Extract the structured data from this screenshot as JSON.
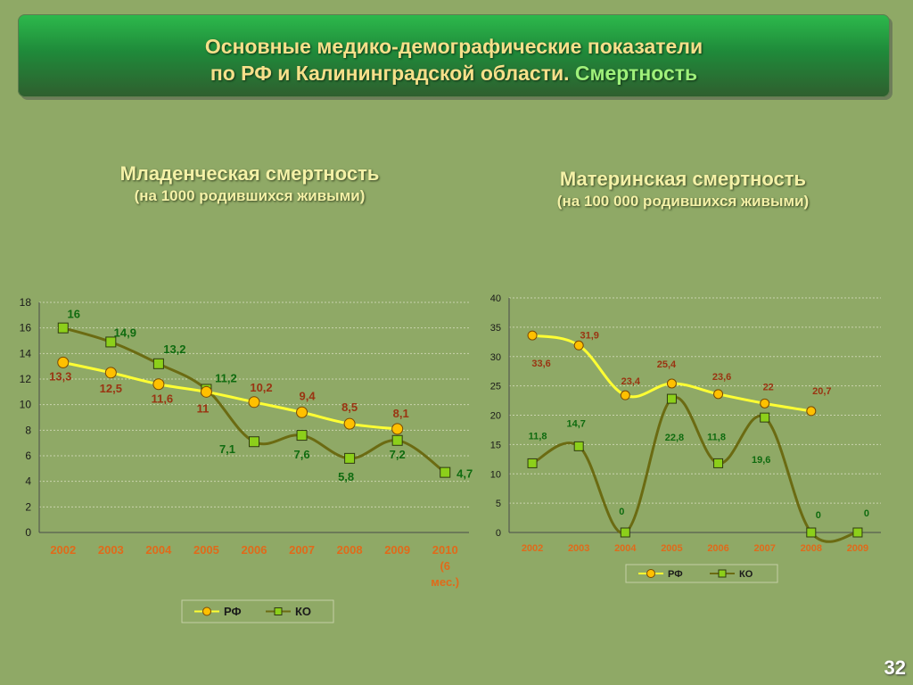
{
  "header": {
    "title_line1": "Основные медико-демографические показатели",
    "title_line2_main": "по РФ и Калининградской области.",
    "title_line2_accent": "Смертность"
  },
  "colors": {
    "background": "#8fa966",
    "rf_line": "#ffff33",
    "rf_marker": "#ffc000",
    "ko_line": "#6b6b12",
    "ko_marker": "#8ccf1a",
    "rf_label": "#9a3412",
    "ko_label": "#0f6b0f",
    "category_label": "#e06a1a"
  },
  "chart_data": [
    {
      "type": "line",
      "title": "Младенческая смертность",
      "subtitle": "(на 1000 родившихся живыми)",
      "categories": [
        "2002",
        "2003",
        "2004",
        "2005",
        "2006",
        "2007",
        "2008",
        "2009",
        "2010 (6 мес.)"
      ],
      "category_lines": [
        [
          "2002"
        ],
        [
          "2003"
        ],
        [
          "2004"
        ],
        [
          "2005"
        ],
        [
          "2006"
        ],
        [
          "2007"
        ],
        [
          "2008"
        ],
        [
          "2009"
        ],
        [
          "2010",
          "(6",
          "мес.)"
        ]
      ],
      "ylim": [
        0,
        18
      ],
      "yticks": [
        0,
        2,
        4,
        6,
        8,
        10,
        12,
        14,
        16,
        18
      ],
      "grid": true,
      "legend": "bottom",
      "series": [
        {
          "name": "РФ",
          "values": [
            13.3,
            12.5,
            11.6,
            11,
            10.2,
            9.4,
            8.5,
            8.1,
            null
          ],
          "labels": [
            "13,3",
            "12,5",
            "11,6",
            "11",
            "10,2",
            "9,4",
            "8,5",
            "8,1",
            null
          ]
        },
        {
          "name": "КО",
          "values": [
            16,
            14.9,
            13.2,
            11.2,
            7.1,
            7.6,
            5.8,
            7.2,
            4.7
          ],
          "labels": [
            "16",
            "14,9",
            "13,2",
            "11,2",
            "7,1",
            "7,6",
            "5,8",
            "7,2",
            "4,7"
          ]
        }
      ]
    },
    {
      "type": "line",
      "title": "Материнская смертность",
      "subtitle": "(на 100 000 родившихся живыми)",
      "categories": [
        "2002",
        "2003",
        "2004",
        "2005",
        "2006",
        "2007",
        "2008",
        "2009"
      ],
      "category_lines": [
        [
          "2002"
        ],
        [
          "2003"
        ],
        [
          "2004"
        ],
        [
          "2005"
        ],
        [
          "2006"
        ],
        [
          "2007"
        ],
        [
          "2008"
        ],
        [
          "2009"
        ]
      ],
      "ylim": [
        0,
        40
      ],
      "yticks": [
        0,
        5,
        10,
        15,
        20,
        25,
        30,
        35,
        40
      ],
      "grid": true,
      "legend": "bottom",
      "series": [
        {
          "name": "РФ",
          "values": [
            33.6,
            31.9,
            23.4,
            25.4,
            23.6,
            22,
            20.7,
            null
          ],
          "labels": [
            "33,6",
            "31,9",
            "23,4",
            "25,4",
            "23,6",
            "22",
            "20,7",
            null
          ]
        },
        {
          "name": "КО",
          "values": [
            11.8,
            14.7,
            0,
            22.8,
            11.8,
            19.6,
            0,
            0
          ],
          "labels": [
            "11,8",
            "14,7",
            "0",
            "22,8",
            "11,8",
            "19,6",
            "0",
            "0"
          ]
        }
      ]
    }
  ],
  "page_number": "32"
}
